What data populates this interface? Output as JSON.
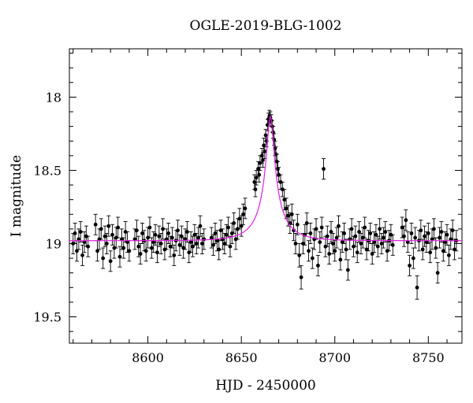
{
  "chart_data": {
    "type": "scatter",
    "title": "OGLE-2019-BLG-1002",
    "xlabel": "HJD - 2450000",
    "ylabel": "I magnitude",
    "xlim": [
      8558,
      8768
    ],
    "ylim": [
      19.68,
      17.67
    ],
    "y_inverted": true,
    "grid": false,
    "x_ticks": [
      8600,
      8650,
      8700,
      8750
    ],
    "y_ticks": [
      18,
      18.5,
      19,
      19.5
    ],
    "x_tick_labels": [
      "8600",
      "8650",
      "8700",
      "8750"
    ],
    "y_tick_labels": [
      "18",
      "18.5",
      "19",
      "19.5"
    ],
    "colors": {
      "points": "#000000",
      "model": "#e020e0"
    },
    "model": {
      "name": "",
      "t0": 8665.5,
      "baseline_mag": 18.98,
      "peak_mag": 18.13,
      "u0": 0.128,
      "tE": 14
    },
    "series": [
      {
        "name": "",
        "marker": "filled-circle-with-errorbar",
        "points": [
          [
            8560,
            19.0,
            0.07
          ],
          [
            8561,
            18.93,
            0.07
          ],
          [
            8562,
            19.05,
            0.07
          ],
          [
            8563,
            18.97,
            0.07
          ],
          [
            8564,
            18.92,
            0.07
          ],
          [
            8565,
            19.08,
            0.07
          ],
          [
            8566,
            18.99,
            0.07
          ],
          [
            8567,
            18.95,
            0.07
          ],
          [
            8568,
            19.02,
            0.07
          ],
          [
            8572,
            18.87,
            0.07
          ],
          [
            8573,
            19.05,
            0.07
          ],
          [
            8574,
            18.97,
            0.07
          ],
          [
            8575,
            18.9,
            0.07
          ],
          [
            8576,
            19.1,
            0.07
          ],
          [
            8577,
            18.95,
            0.07
          ],
          [
            8578,
            19.0,
            0.07
          ],
          [
            8579,
            18.88,
            0.07
          ],
          [
            8580,
            19.12,
            0.07
          ],
          [
            8581,
            18.94,
            0.07
          ],
          [
            8582,
            19.03,
            0.07
          ],
          [
            8583,
            18.96,
            0.07
          ],
          [
            8584,
            18.89,
            0.07
          ],
          [
            8585,
            19.09,
            0.07
          ],
          [
            8586,
            18.97,
            0.07
          ],
          [
            8587,
            19.03,
            0.07
          ],
          [
            8588,
            18.92,
            0.07
          ],
          [
            8589,
            18.99,
            0.07
          ],
          [
            8590,
            19.05,
            0.07
          ],
          [
            8593,
            18.97,
            0.07
          ],
          [
            8594,
            18.91,
            0.07
          ],
          [
            8595,
            19.02,
            0.07
          ],
          [
            8596,
            19.07,
            0.07
          ],
          [
            8597,
            18.93,
            0.07
          ],
          [
            8598,
            18.98,
            0.07
          ],
          [
            8599,
            19.05,
            0.07
          ],
          [
            8600,
            18.96,
            0.07
          ],
          [
            8601,
            18.89,
            0.07
          ],
          [
            8602,
            19.03,
            0.07
          ],
          [
            8603,
            18.99,
            0.07
          ],
          [
            8604,
            18.94,
            0.07
          ],
          [
            8605,
            19.06,
            0.07
          ],
          [
            8606,
            18.95,
            0.07
          ],
          [
            8607,
            19.0,
            0.07
          ],
          [
            8608,
            18.9,
            0.07
          ],
          [
            8609,
            19.04,
            0.07
          ],
          [
            8610,
            18.97,
            0.07
          ],
          [
            8611,
            18.93,
            0.07
          ],
          [
            8612,
            19.02,
            0.07
          ],
          [
            8613,
            18.96,
            0.07
          ],
          [
            8614,
            19.08,
            0.07
          ],
          [
            8615,
            18.98,
            0.07
          ],
          [
            8616,
            18.91,
            0.07
          ],
          [
            8617,
            19.01,
            0.07
          ],
          [
            8618,
            18.95,
            0.07
          ],
          [
            8619,
            19.03,
            0.07
          ],
          [
            8620,
            18.97,
            0.07
          ],
          [
            8621,
            18.92,
            0.07
          ],
          [
            8622,
            19.06,
            0.07
          ],
          [
            8623,
            18.99,
            0.07
          ],
          [
            8624,
            19.02,
            0.07
          ],
          [
            8625,
            18.94,
            0.07
          ],
          [
            8626,
            19.0,
            0.07
          ],
          [
            8627,
            18.96,
            0.07
          ],
          [
            8628,
            18.88,
            0.07
          ],
          [
            8629,
            19.0,
            0.07
          ],
          [
            8630,
            18.97,
            0.07
          ],
          [
            8634,
            18.96,
            0.07
          ],
          [
            8635,
            19.01,
            0.07
          ],
          [
            8636,
            18.93,
            0.07
          ],
          [
            8637,
            18.98,
            0.07
          ],
          [
            8638,
            19.04,
            0.07
          ],
          [
            8639,
            18.91,
            0.07
          ],
          [
            8640,
            18.97,
            0.07
          ],
          [
            8641,
            19.0,
            0.07
          ],
          [
            8642,
            18.94,
            0.07
          ],
          [
            8643,
            18.89,
            0.07
          ],
          [
            8644,
            19.02,
            0.07
          ],
          [
            8645,
            18.93,
            0.07
          ],
          [
            8646,
            18.86,
            0.07
          ],
          [
            8647,
            18.97,
            0.07
          ],
          [
            8648,
            18.9,
            0.07
          ],
          [
            8649,
            18.83,
            0.07
          ],
          [
            8650,
            18.88,
            0.07
          ],
          [
            8651,
            18.8,
            0.07
          ],
          [
            8652,
            18.76,
            0.07
          ],
          [
            8657,
            18.58,
            0.05
          ],
          [
            8657.5,
            18.63,
            0.05
          ],
          [
            8658,
            18.55,
            0.05
          ],
          [
            8659,
            18.49,
            0.05
          ],
          [
            8659.5,
            18.53,
            0.05
          ],
          [
            8660,
            18.45,
            0.05
          ],
          [
            8661,
            18.4,
            0.05
          ],
          [
            8661.5,
            18.43,
            0.05
          ],
          [
            8662,
            18.33,
            0.05
          ],
          [
            8662.5,
            18.37,
            0.05
          ],
          [
            8663,
            18.26,
            0.04
          ],
          [
            8663.5,
            18.3,
            0.04
          ],
          [
            8664,
            18.19,
            0.04
          ],
          [
            8664.5,
            18.15,
            0.04
          ],
          [
            8665,
            18.13,
            0.04
          ],
          [
            8665.5,
            18.14,
            0.04
          ],
          [
            8666,
            18.16,
            0.04
          ],
          [
            8666.5,
            18.2,
            0.04
          ],
          [
            8667,
            18.24,
            0.04
          ],
          [
            8667.5,
            18.29,
            0.04
          ],
          [
            8668,
            18.35,
            0.05
          ],
          [
            8668.5,
            18.39,
            0.05
          ],
          [
            8669,
            18.44,
            0.05
          ],
          [
            8669.5,
            18.49,
            0.05
          ],
          [
            8670,
            18.53,
            0.05
          ],
          [
            8671,
            18.58,
            0.05
          ],
          [
            8672,
            18.63,
            0.05
          ],
          [
            8673,
            18.7,
            0.07
          ],
          [
            8674,
            18.76,
            0.07
          ],
          [
            8675,
            18.81,
            0.07
          ],
          [
            8676,
            18.86,
            0.07
          ],
          [
            8677,
            18.8,
            0.07
          ],
          [
            8678,
            18.91,
            0.07
          ],
          [
            8679,
            19.0,
            0.07
          ],
          [
            8680,
            18.87,
            0.07
          ],
          [
            8681,
            19.08,
            0.08
          ],
          [
            8682,
            19.23,
            0.08
          ],
          [
            8683,
            19.0,
            0.07
          ],
          [
            8684,
            18.94,
            0.07
          ],
          [
            8685,
            18.86,
            0.07
          ],
          [
            8686,
            19.05,
            0.07
          ],
          [
            8687,
            18.93,
            0.07
          ],
          [
            8688,
            19.1,
            0.07
          ],
          [
            8689,
            18.97,
            0.07
          ],
          [
            8690,
            18.9,
            0.07
          ],
          [
            8691,
            19.15,
            0.07
          ],
          [
            8692,
            18.99,
            0.07
          ],
          [
            8693,
            18.89,
            0.07
          ],
          [
            8694,
            18.49,
            0.07
          ],
          [
            8695,
            19.02,
            0.07
          ],
          [
            8696,
            18.95,
            0.07
          ],
          [
            8697,
            19.07,
            0.07
          ],
          [
            8698,
            18.92,
            0.07
          ],
          [
            8699,
            19.0,
            0.07
          ],
          [
            8700,
            19.05,
            0.07
          ],
          [
            8701,
            18.96,
            0.07
          ],
          [
            8702,
            18.88,
            0.07
          ],
          [
            8703,
            19.11,
            0.07
          ],
          [
            8704,
            18.99,
            0.07
          ],
          [
            8705,
            18.93,
            0.07
          ],
          [
            8706,
            19.04,
            0.07
          ],
          [
            8707,
            19.18,
            0.07
          ],
          [
            8708,
            18.97,
            0.07
          ],
          [
            8709,
            18.9,
            0.07
          ],
          [
            8710,
            19.02,
            0.07
          ],
          [
            8711,
            18.95,
            0.07
          ],
          [
            8712,
            19.06,
            0.07
          ],
          [
            8713,
            18.92,
            0.07
          ],
          [
            8714,
            19.0,
            0.07
          ],
          [
            8715,
            18.96,
            0.07
          ],
          [
            8716,
            18.89,
            0.07
          ],
          [
            8717,
            19.04,
            0.07
          ],
          [
            8718,
            18.98,
            0.07
          ],
          [
            8719,
            18.93,
            0.07
          ],
          [
            8720,
            19.07,
            0.07
          ],
          [
            8721,
            18.99,
            0.07
          ],
          [
            8722,
            18.94,
            0.07
          ],
          [
            8723,
            19.02,
            0.07
          ],
          [
            8724,
            18.9,
            0.07
          ],
          [
            8725,
            19.0,
            0.07
          ],
          [
            8726,
            18.96,
            0.07
          ],
          [
            8727,
            18.92,
            0.07
          ],
          [
            8728,
            19.05,
            0.07
          ],
          [
            8729,
            18.98,
            0.07
          ],
          [
            8730,
            18.94,
            0.07
          ],
          [
            8731,
            19.01,
            0.07
          ],
          [
            8736,
            18.89,
            0.07
          ],
          [
            8737,
            18.95,
            0.07
          ],
          [
            8738,
            18.84,
            0.07
          ],
          [
            8739,
            18.99,
            0.07
          ],
          [
            8740,
            19.15,
            0.07
          ],
          [
            8741,
            18.93,
            0.07
          ],
          [
            8742,
            19.1,
            0.07
          ],
          [
            8743,
            18.96,
            0.07
          ],
          [
            8744,
            19.3,
            0.08
          ],
          [
            8745,
            18.98,
            0.07
          ],
          [
            8746,
            18.91,
            0.07
          ],
          [
            8747,
            19.04,
            0.07
          ],
          [
            8748,
            18.95,
            0.07
          ],
          [
            8749,
            18.99,
            0.07
          ],
          [
            8750,
            18.93,
            0.07
          ],
          [
            8751,
            19.06,
            0.07
          ],
          [
            8752,
            18.97,
            0.07
          ],
          [
            8753,
            18.9,
            0.07
          ],
          [
            8754,
            19.03,
            0.07
          ],
          [
            8755,
            19.2,
            0.07
          ],
          [
            8756,
            18.96,
            0.07
          ],
          [
            8757,
            18.92,
            0.07
          ],
          [
            8758,
            19.05,
            0.07
          ],
          [
            8759,
            18.99,
            0.07
          ],
          [
            8760,
            18.94,
            0.07
          ],
          [
            8761,
            19.08,
            0.07
          ],
          [
            8762,
            18.97,
            0.07
          ],
          [
            8763,
            18.91,
            0.07
          ],
          [
            8764,
            19.04,
            0.07
          ],
          [
            8765,
            18.98,
            0.07
          ]
        ]
      }
    ]
  }
}
